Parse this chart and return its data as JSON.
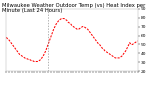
{
  "title": "Milwaukee Weather Outdoor Temp (vs) Heat Index per Minute (Last 24 Hours)",
  "line_color": "#ff0000",
  "bg_color": "#ffffff",
  "plot_bg_color": "#ffffff",
  "ylim": [
    20,
    90
  ],
  "yticks": [
    20,
    30,
    40,
    50,
    60,
    70,
    80,
    90
  ],
  "x_points": [
    0,
    1,
    2,
    3,
    4,
    5,
    6,
    7,
    8,
    9,
    10,
    11,
    12,
    13,
    14,
    15,
    16,
    17,
    18,
    19,
    20,
    21,
    22,
    23,
    24,
    25,
    26,
    27,
    28,
    29,
    30,
    31,
    32,
    33,
    34,
    35,
    36,
    37,
    38,
    39,
    40,
    41,
    42,
    43,
    44,
    45,
    46,
    47,
    48,
    49,
    50,
    51,
    52,
    53,
    54,
    55,
    56,
    57,
    58,
    59,
    60,
    61,
    62,
    63,
    64,
    65,
    66,
    67,
    68,
    69,
    70,
    71,
    72,
    73,
    74,
    75,
    76,
    77,
    78,
    79,
    80,
    81,
    82,
    83,
    84,
    85,
    86,
    87,
    88,
    89,
    90,
    91,
    92,
    93,
    94,
    95,
    96,
    97,
    98,
    99,
    100
  ],
  "y_points": [
    58,
    56,
    55,
    53,
    51,
    49,
    47,
    45,
    43,
    41,
    39,
    38,
    37,
    36,
    35,
    34,
    34,
    33,
    33,
    32,
    32,
    31,
    31,
    31,
    31,
    32,
    33,
    35,
    37,
    40,
    43,
    47,
    51,
    55,
    59,
    63,
    67,
    70,
    73,
    75,
    77,
    78,
    79,
    79,
    79,
    78,
    77,
    75,
    74,
    73,
    71,
    70,
    69,
    68,
    67,
    67,
    68,
    69,
    70,
    70,
    69,
    68,
    67,
    65,
    63,
    61,
    59,
    57,
    55,
    53,
    51,
    50,
    48,
    46,
    45,
    43,
    42,
    41,
    40,
    39,
    38,
    37,
    36,
    35,
    35,
    35,
    35,
    36,
    37,
    39,
    41,
    43,
    46,
    49,
    52,
    50,
    50,
    51,
    52,
    53,
    54
  ],
  "vline_position": 32,
  "title_fontsize": 3.8,
  "tick_fontsize": 3.2,
  "line_width": 0.75,
  "dash_on": 2.0,
  "dash_off": 1.2,
  "num_xticks": 48,
  "xlim": [
    0,
    100
  ]
}
